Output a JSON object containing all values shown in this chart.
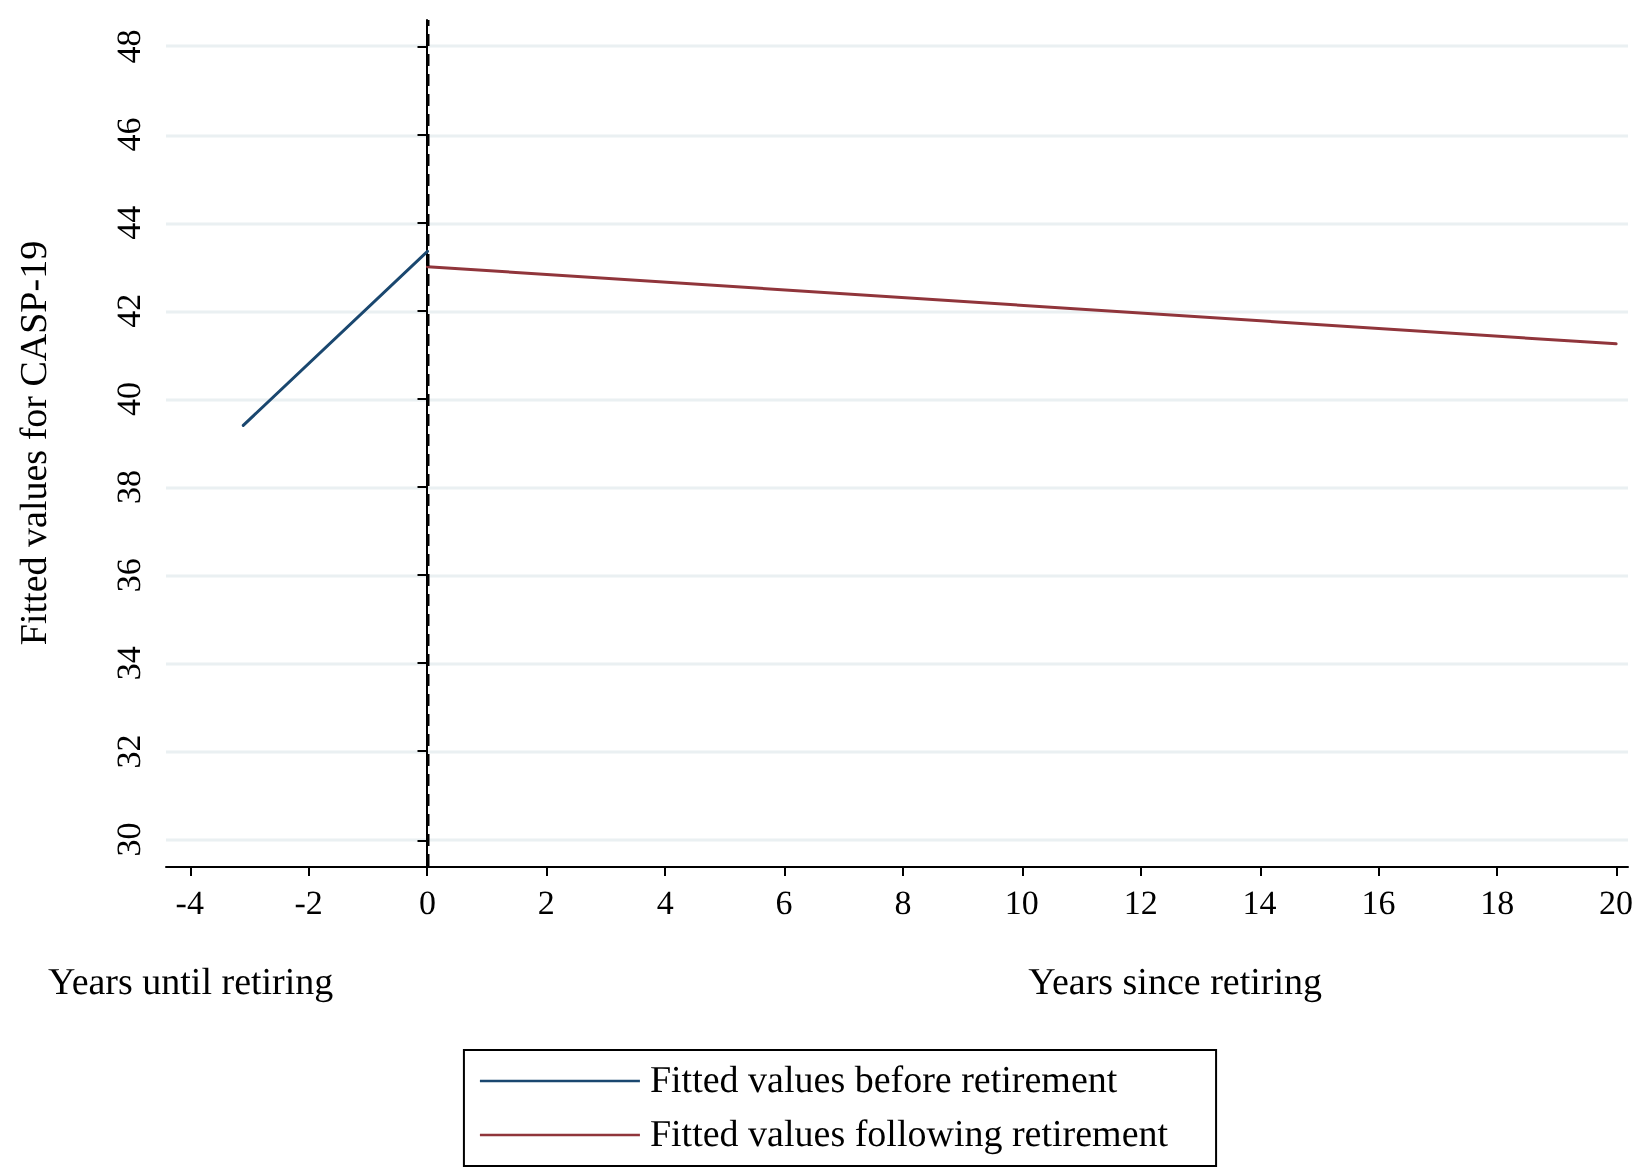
{
  "chart_data": {
    "type": "line",
    "ylabel": "Fitted values for CASP-19",
    "xlabel": "Years since retiring",
    "annotations": [
      "Years until retiring"
    ],
    "series": [
      {
        "name": "Fitted values before retirement",
        "color": "#1a476f",
        "x": [
          -3.1,
          0
        ],
        "values": [
          39.4,
          43.35
        ]
      },
      {
        "name": "Fitted values following retirement",
        "color": "#90353b",
        "x": [
          0,
          20
        ],
        "values": [
          43.0,
          41.25
        ]
      }
    ],
    "xlim": [
      -4.4,
      20.2
    ],
    "xticks": [
      -4,
      -2,
      0,
      2,
      4,
      6,
      8,
      10,
      12,
      14,
      16,
      18,
      20
    ],
    "ylim": [
      29.4,
      48.6
    ],
    "yticks": [
      30,
      32,
      34,
      36,
      38,
      40,
      42,
      44,
      46,
      48
    ],
    "ref_lines": [
      {
        "axis": "x",
        "value": 0,
        "color": "#000000",
        "line_style": "dashed"
      }
    ],
    "grid": "y",
    "legend": "bottom",
    "marker": "none",
    "line_style": "solid"
  }
}
